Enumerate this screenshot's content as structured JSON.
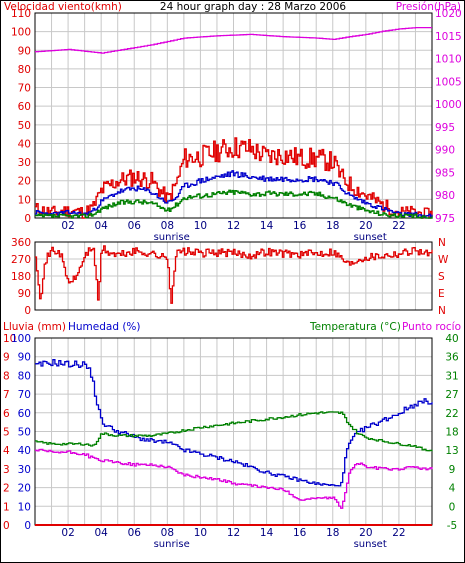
{
  "colors": {
    "red": "#e00000",
    "blue": "#0000cc",
    "green": "#008000",
    "magenta": "#dd00dd",
    "grid": "#c8c8c8",
    "axis": "#000000"
  },
  "chart_data": [
    {
      "type": "line",
      "title": "24 hour graph day : 28 Marzo 2006",
      "left_axis_label": "Velocidad viento(kmh)",
      "right_axis_label": "Presión(hPa)",
      "x_ticks": [
        "02",
        "04",
        "06",
        "08",
        "10",
        "12",
        "14",
        "16",
        "18",
        "20",
        "22"
      ],
      "x_labels_under": {
        "sunrise": "sunrise",
        "sunset": "sunset"
      },
      "sunrise_hour": 7.9,
      "sunset_hour": 19.9,
      "ylim_left": [
        0,
        110
      ],
      "yticks_left": [
        0,
        10,
        20,
        30,
        40,
        50,
        60,
        70,
        80,
        90,
        100,
        110
      ],
      "ylim_right": [
        975,
        1020
      ],
      "yticks_right": [
        975,
        980,
        985,
        990,
        995,
        1000,
        1005,
        1010,
        1015,
        1020
      ],
      "xlim": [
        0,
        24
      ],
      "series": [
        {
          "axis": "left",
          "color": "red",
          "x": [
            0,
            1,
            2,
            3,
            3.5,
            4,
            5,
            6,
            7,
            8,
            8.5,
            9,
            10,
            11,
            12,
            13,
            14,
            15,
            16,
            17,
            18,
            18.5,
            19,
            20,
            21,
            22,
            23,
            23.5
          ],
          "values": [
            5,
            3,
            4,
            3,
            6,
            15,
            20,
            22,
            20,
            10,
            18,
            32,
            33,
            36,
            38,
            37,
            33,
            34,
            32,
            32,
            30,
            22,
            18,
            12,
            7,
            3,
            3,
            2
          ]
        },
        {
          "axis": "left",
          "color": "blue",
          "x": [
            0,
            1,
            2,
            3,
            3.5,
            4,
            5,
            6,
            7,
            8,
            8.5,
            9,
            10,
            11,
            12,
            13,
            14,
            15,
            16,
            17,
            18,
            18.5,
            19,
            20,
            21,
            22,
            23,
            23.5
          ],
          "values": [
            3,
            2,
            3,
            2,
            4,
            9,
            14,
            16,
            14,
            8,
            11,
            17,
            20,
            22,
            24,
            22,
            21,
            21,
            21,
            21,
            19,
            16,
            12,
            8,
            5,
            2,
            2,
            1
          ]
        },
        {
          "axis": "left",
          "color": "green",
          "x": [
            0,
            1,
            2,
            3,
            3.5,
            4,
            5,
            6,
            7,
            8,
            8.5,
            9,
            10,
            11,
            12,
            13,
            14,
            15,
            16,
            17,
            18,
            18.5,
            19,
            20,
            21,
            22,
            23,
            23.5
          ],
          "values": [
            1,
            1,
            1,
            1,
            2,
            5,
            8,
            9,
            8,
            4,
            7,
            11,
            12,
            13,
            14,
            13,
            13,
            13,
            13,
            13,
            11,
            9,
            7,
            4,
            2,
            1,
            1,
            0
          ]
        },
        {
          "axis": "right",
          "color": "magenta",
          "x": [
            0,
            2,
            4,
            5,
            7,
            9,
            11,
            13,
            15,
            17,
            18,
            19,
            20,
            21,
            22,
            23,
            24
          ],
          "values": [
            1011.5,
            1012,
            1011.2,
            1011.8,
            1013,
            1014.5,
            1015,
            1015.3,
            1014.8,
            1014.5,
            1014.2,
            1014.8,
            1015.3,
            1016,
            1016.5,
            1016.8,
            1016.8
          ]
        }
      ]
    },
    {
      "type": "line",
      "title": "",
      "yticks_left": [
        "360",
        "270",
        "180",
        "90",
        "0"
      ],
      "ylim_left": [
        0,
        360
      ],
      "right_axis_labels": [
        "N",
        "W",
        "S",
        "E",
        "N"
      ],
      "x_ticks": [
        "02",
        "04",
        "06",
        "08",
        "10",
        "12",
        "14",
        "16",
        "18",
        "20",
        "22"
      ],
      "xlim": [
        0,
        24
      ],
      "series": [
        {
          "axis": "left",
          "color": "red",
          "x": [
            0,
            0.3,
            0.6,
            1,
            1.5,
            2,
            2.5,
            3,
            3.5,
            3.8,
            4,
            4.5,
            5,
            6,
            7,
            8,
            8.2,
            8.5,
            9,
            10,
            11,
            12,
            13,
            14,
            15,
            16,
            17,
            18,
            19,
            19.5,
            20,
            21,
            22,
            23,
            23.5
          ],
          "values": [
            300,
            50,
            260,
            320,
            300,
            140,
            180,
            290,
            340,
            40,
            330,
            300,
            290,
            310,
            300,
            270,
            30,
            300,
            310,
            300,
            305,
            300,
            290,
            310,
            300,
            295,
            300,
            310,
            240,
            270,
            280,
            290,
            300,
            320,
            300
          ]
        }
      ]
    },
    {
      "type": "line",
      "title": "",
      "left_axis_label_1": "Lluvia (mm)",
      "left_axis_label_2": "Humedad (%)",
      "right_axis_label_1": "Temperatura (°C)",
      "right_axis_label_2": "Punto rocío",
      "x_ticks": [
        "02",
        "04",
        "06",
        "08",
        "10",
        "12",
        "14",
        "16",
        "18",
        "20",
        "22"
      ],
      "x_labels_under": {
        "sunrise": "sunrise",
        "sunset": "sunset"
      },
      "sunrise_hour": 7.9,
      "sunset_hour": 19.9,
      "ylim_left": [
        0,
        100
      ],
      "yticks_left_outer": [
        0,
        1,
        2,
        3,
        4,
        5,
        6,
        7,
        8,
        9,
        10
      ],
      "yticks_left_inner": [
        0,
        10,
        20,
        30,
        40,
        50,
        60,
        70,
        80,
        90,
        100
      ],
      "ylim_right": [
        -5,
        40
      ],
      "yticks_right": [
        -5,
        0,
        4,
        9,
        13,
        18,
        22,
        27,
        31,
        36,
        40
      ],
      "xlim": [
        0,
        24
      ],
      "series": [
        {
          "axis": "left",
          "color": "blue",
          "name": "Humedad",
          "x": [
            0,
            1,
            2,
            3,
            3.4,
            3.6,
            3.8,
            4,
            4.5,
            5,
            6,
            7,
            8,
            9,
            10,
            11,
            12,
            13,
            14,
            15,
            16,
            17,
            18,
            18.5,
            18.8,
            19.2,
            19.6,
            20,
            21,
            22,
            23,
            23.5
          ],
          "values": [
            85,
            87,
            86,
            86,
            80,
            70,
            62,
            55,
            52,
            50,
            47,
            45,
            44,
            40,
            38,
            36,
            34,
            31,
            28,
            26,
            24,
            22,
            21,
            22,
            40,
            47,
            50,
            52,
            56,
            60,
            65,
            66
          ]
        },
        {
          "axis": "right",
          "color": "green",
          "name": "Temperatura",
          "x": [
            0,
            1,
            2,
            3,
            3.5,
            4,
            5,
            6,
            7,
            8,
            9,
            10,
            11,
            12,
            13,
            14,
            15,
            16,
            17,
            18,
            18.5,
            19,
            19.5,
            20,
            21,
            22,
            23,
            23.5
          ],
          "values": [
            15,
            14.5,
            14.5,
            14.5,
            14,
            17,
            16.5,
            16.5,
            16.5,
            17,
            17.8,
            18.5,
            19,
            19.5,
            20,
            20.5,
            21,
            21.5,
            22,
            22,
            22,
            19,
            17,
            16,
            15.2,
            14.5,
            14,
            13
          ]
        },
        {
          "axis": "right",
          "color": "magenta",
          "name": "Punto rocío",
          "x": [
            0,
            1,
            2,
            3,
            3.5,
            4,
            5,
            6,
            7,
            8,
            9,
            10,
            11,
            12,
            13,
            14,
            15,
            16,
            17,
            18,
            18.5,
            19,
            19.5,
            20,
            21,
            22,
            23,
            23.5
          ],
          "values": [
            13,
            12.5,
            12.5,
            12,
            11,
            10.5,
            10,
            9.5,
            9.5,
            9,
            7,
            6.5,
            6,
            5,
            4.5,
            4,
            3.5,
            1,
            1.5,
            1.5,
            -1,
            8,
            10,
            9,
            8.5,
            8.5,
            9,
            8.5
          ]
        },
        {
          "axis": "left",
          "color": "red",
          "name": "Lluvia",
          "x": [
            0,
            24
          ],
          "values": [
            0,
            0
          ]
        }
      ]
    }
  ]
}
